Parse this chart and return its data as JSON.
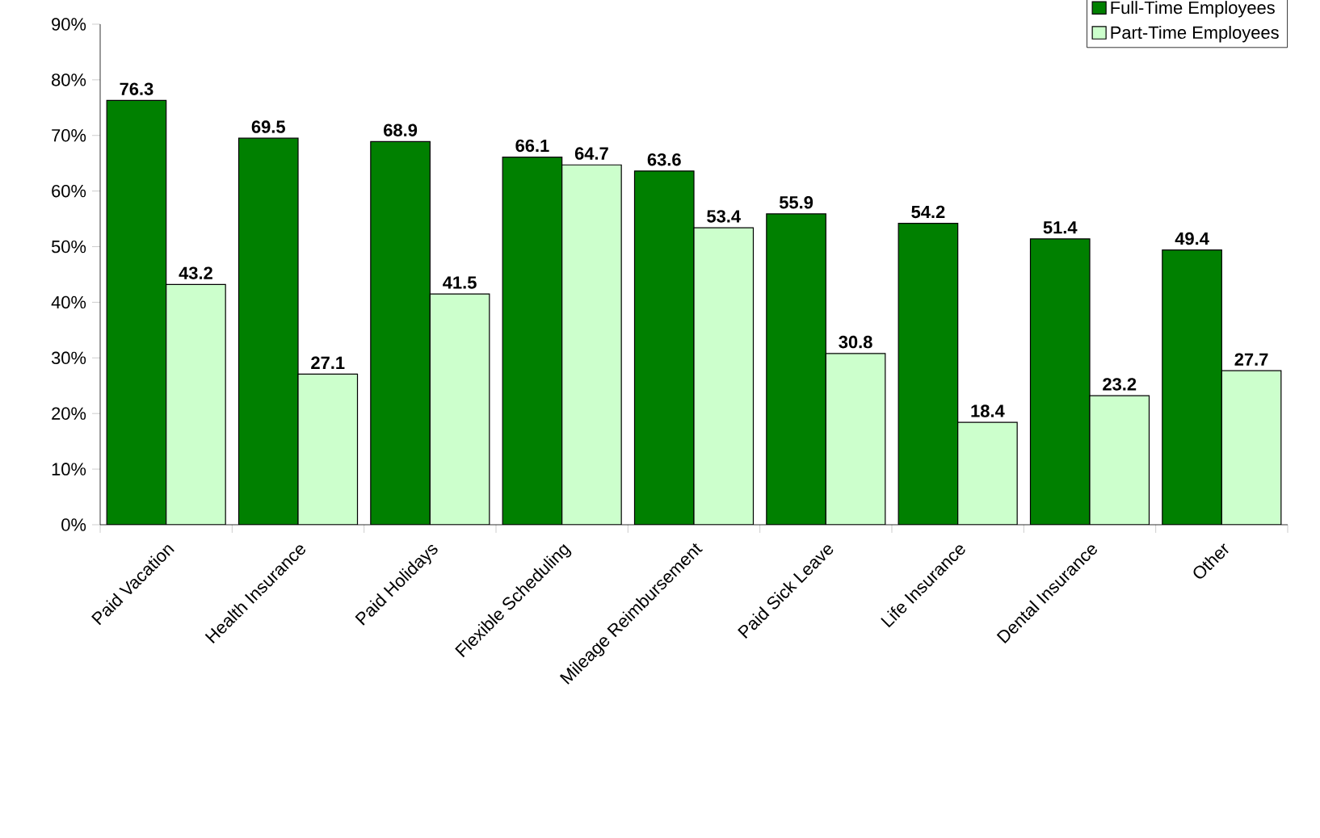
{
  "chart_data": {
    "type": "bar",
    "categories": [
      "Paid Vacation",
      "Health Insurance",
      "Paid Holidays",
      "Flexible Scheduling",
      "Mileage Reimbursement",
      "Paid Sick Leave",
      "Life Insurance",
      "Dental Insurance",
      "Other"
    ],
    "series": [
      {
        "name": "Full-Time Employees",
        "color": "#008000",
        "values": [
          76.3,
          69.5,
          68.9,
          66.1,
          63.6,
          55.9,
          54.2,
          51.4,
          49.4
        ]
      },
      {
        "name": "Part-Time Employees",
        "color": "#ccffcc",
        "values": [
          43.2,
          27.1,
          41.5,
          64.7,
          53.4,
          30.8,
          18.4,
          23.2,
          27.7
        ]
      }
    ],
    "ylim": [
      0,
      90
    ],
    "yticks": [
      {
        "value": 0,
        "label": "0%"
      },
      {
        "value": 10,
        "label": "10%"
      },
      {
        "value": 20,
        "label": "20%"
      },
      {
        "value": 30,
        "label": "30%"
      },
      {
        "value": 40,
        "label": "40%"
      },
      {
        "value": 50,
        "label": "50%"
      },
      {
        "value": 60,
        "label": "60%"
      },
      {
        "value": 70,
        "label": "70%"
      },
      {
        "value": 80,
        "label": "80%"
      },
      {
        "value": 90,
        "label": "90%"
      }
    ],
    "data_labels": true,
    "grid": false,
    "legend": "top right"
  }
}
